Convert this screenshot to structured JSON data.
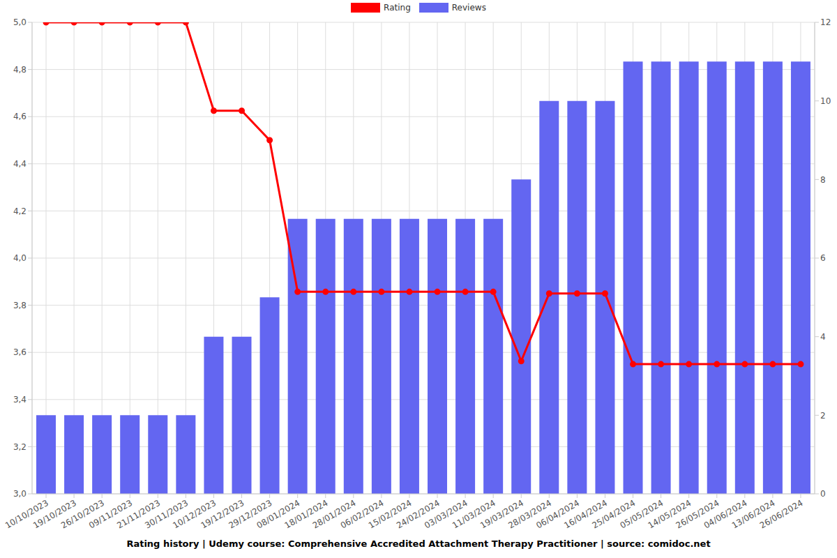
{
  "chart_data": {
    "type": "bar_line",
    "title": "Rating history | Udemy course: Comprehensive Accredited Attachment Therapy Practitioner | source: comidoc.net",
    "categories": [
      "10/10/2023",
      "19/10/2023",
      "26/10/2023",
      "09/11/2023",
      "21/11/2023",
      "30/11/2023",
      "10/12/2023",
      "19/12/2023",
      "29/12/2023",
      "08/01/2024",
      "18/01/2024",
      "28/01/2024",
      "06/02/2024",
      "15/02/2024",
      "24/02/2024",
      "03/03/2024",
      "11/03/2024",
      "19/03/2024",
      "28/03/2024",
      "06/04/2024",
      "16/04/2024",
      "25/04/2024",
      "05/05/2024",
      "14/05/2024",
      "26/05/2024",
      "04/06/2024",
      "13/06/2024",
      "26/06/2024"
    ],
    "series": [
      {
        "name": "Rating",
        "type": "line",
        "color": "#ff0000",
        "marker": "circle",
        "values": [
          5,
          5,
          5,
          5,
          5,
          5,
          4.625,
          4.625,
          4.5,
          3.857,
          3.857,
          3.857,
          3.857,
          3.857,
          3.857,
          3.857,
          3.857,
          3.563,
          3.85,
          3.85,
          3.85,
          3.55,
          3.55,
          3.55,
          3.55,
          3.55,
          3.55,
          3.55
        ]
      },
      {
        "name": "Reviews",
        "type": "bar",
        "color": "#6366f1",
        "axis": "y2",
        "values": [
          2,
          2,
          2,
          2,
          2,
          2,
          4,
          4,
          5,
          7,
          7,
          7,
          7,
          7,
          7,
          7,
          7,
          8,
          10,
          10,
          10,
          11,
          11,
          11,
          11,
          11,
          11,
          11
        ]
      }
    ],
    "ylim": [
      3,
      5
    ],
    "yticks": [
      {
        "value": 3,
        "label": "3,0"
      },
      {
        "value": 3.2,
        "label": "3,2"
      },
      {
        "value": 3.4,
        "label": "3,4"
      },
      {
        "value": 3.6,
        "label": "3,6"
      },
      {
        "value": 3.8,
        "label": "3,8"
      },
      {
        "value": 4,
        "label": "4,0"
      },
      {
        "value": 4.2,
        "label": "4,2"
      },
      {
        "value": 4.4,
        "label": "4,4"
      },
      {
        "value": 4.6,
        "label": "4,6"
      },
      {
        "value": 4.8,
        "label": "4,8"
      },
      {
        "value": 5,
        "label": "5,0"
      }
    ],
    "y2lim": [
      0,
      12
    ],
    "y2ticks": [
      0,
      2,
      4,
      6,
      8,
      10,
      12
    ],
    "grid": true,
    "legend": "top"
  }
}
